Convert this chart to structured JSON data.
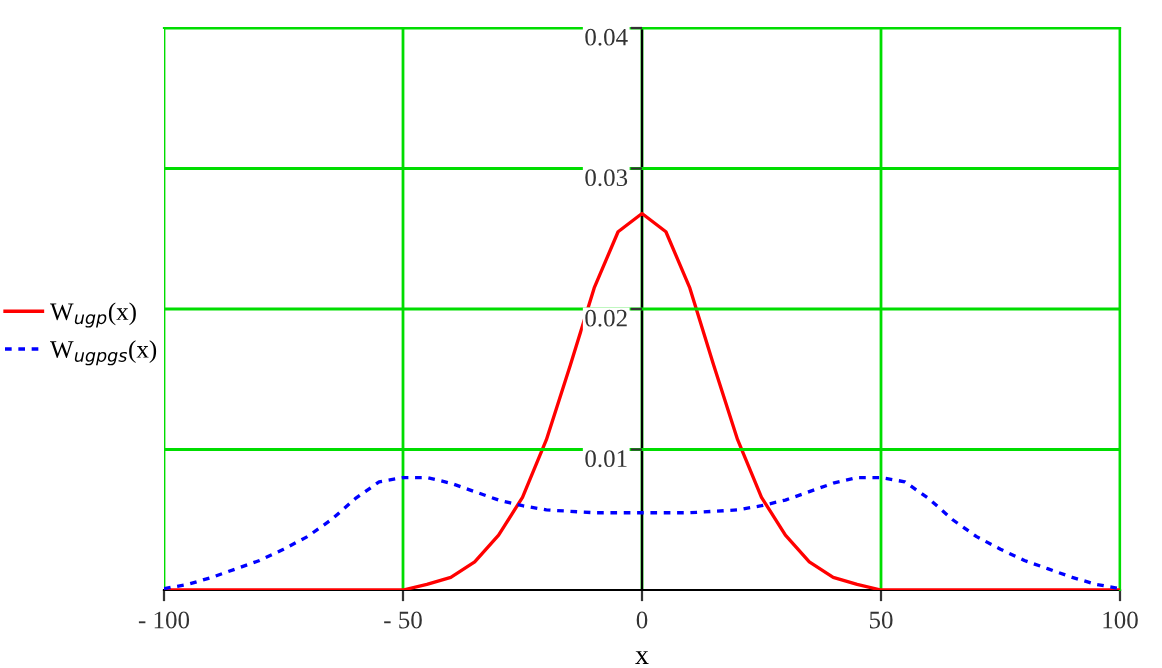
{
  "chart_data": {
    "type": "line",
    "xlabel": "x",
    "xlim": [
      -100,
      100
    ],
    "ylim": [
      0,
      0.04
    ],
    "xticks": [
      {
        "value": -100,
        "label": "- 100"
      },
      {
        "value": -50,
        "label": "- 50"
      },
      0,
      50,
      100
    ],
    "yticks": [
      0.01,
      0.02,
      0.03,
      0.04
    ],
    "grid": true,
    "legend": "left",
    "marker": "none",
    "series": [
      {
        "name": "W$_{ugp}$(x)",
        "color": "#ff0000",
        "line_style": "solid",
        "x": [
          -100,
          -50,
          -45,
          -40,
          -35,
          -30,
          -25,
          -20,
          -15,
          -10,
          -5,
          0,
          5,
          10,
          15,
          20,
          25,
          30,
          35,
          40,
          45,
          50,
          100
        ],
        "values": [
          0,
          0,
          0.0004,
          0.0009,
          0.002,
          0.0039,
          0.0066,
          0.0107,
          0.016,
          0.0215,
          0.0255,
          0.0268,
          0.0255,
          0.0215,
          0.016,
          0.0107,
          0.0066,
          0.0039,
          0.002,
          0.0009,
          0.0004,
          0,
          0
        ]
      },
      {
        "name": "W$_{ugpgs}$(x)",
        "color": "#0000ff",
        "line_style": "dashed",
        "x": [
          -100,
          -95,
          -90,
          -85,
          -80,
          -75,
          -70,
          -65,
          -60,
          -55,
          -50,
          -45,
          -40,
          -35,
          -30,
          -25,
          -20,
          -10,
          0,
          10,
          20,
          25,
          30,
          35,
          40,
          45,
          50,
          55,
          60,
          65,
          70,
          75,
          80,
          85,
          90,
          95,
          100
        ],
        "values": [
          0.0001,
          0.0004,
          0.0009,
          0.0015,
          0.0021,
          0.0029,
          0.0038,
          0.005,
          0.0065,
          0.0077,
          0.008,
          0.008,
          0.0076,
          0.007,
          0.0064,
          0.006,
          0.0057,
          0.0055,
          0.0055,
          0.0055,
          0.0057,
          0.006,
          0.0064,
          0.007,
          0.0076,
          0.008,
          0.008,
          0.0077,
          0.0065,
          0.005,
          0.0038,
          0.0029,
          0.0021,
          0.0015,
          0.0009,
          0.0004,
          0.0001
        ]
      }
    ]
  }
}
